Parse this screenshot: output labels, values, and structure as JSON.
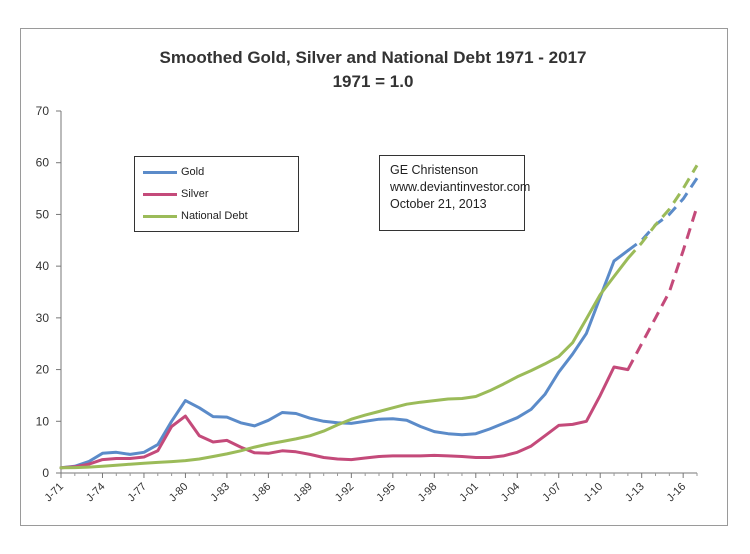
{
  "chart_data": {
    "type": "line",
    "title": "Smoothed Gold, Silver and National Debt 1971 - 2017",
    "subtitle": "1971 = 1.0",
    "xlabel": "",
    "ylabel": "",
    "ylim": [
      0,
      70
    ],
    "yticks": [
      0,
      10,
      20,
      30,
      40,
      50,
      60,
      70
    ],
    "xticks": [
      "J-71",
      "J-74",
      "J-77",
      "J-80",
      "J-83",
      "J-86",
      "J-89",
      "J-92",
      "J-95",
      "J-98",
      "J-01",
      "J-04",
      "J-07",
      "J-10",
      "J-13",
      "J-16"
    ],
    "x_start_year": 1971,
    "x_end_year": 2017,
    "grid": false,
    "legend_position": "top-left",
    "series": [
      {
        "name": "Gold",
        "color": "#5b8bc9",
        "x": [
          1971,
          1972,
          1973,
          1974,
          1975,
          1976,
          1977,
          1978,
          1979,
          1980,
          1981,
          1982,
          1983,
          1984,
          1985,
          1986,
          1987,
          1988,
          1989,
          1990,
          1991,
          1992,
          1993,
          1994,
          1995,
          1996,
          1997,
          1998,
          1999,
          2000,
          2001,
          2002,
          2003,
          2004,
          2005,
          2006,
          2007,
          2008,
          2009,
          2010,
          2011,
          2012
        ],
        "values": [
          1.0,
          1.3,
          2.2,
          3.8,
          4.0,
          3.6,
          4.0,
          5.5,
          10.0,
          14.0,
          12.6,
          10.9,
          10.8,
          9.7,
          9.1,
          10.2,
          11.7,
          11.5,
          10.6,
          10.0,
          9.7,
          9.6,
          10.0,
          10.4,
          10.5,
          10.2,
          9.0,
          8.0,
          7.6,
          7.4,
          7.6,
          8.5,
          9.6,
          10.7,
          12.3,
          15.2,
          19.5,
          23.0,
          27.0,
          34.0,
          41.0,
          43.0
        ]
      },
      {
        "name": "Gold (projected)",
        "color": "#5b8bc9",
        "dashed": true,
        "x": [
          2012,
          2013,
          2014,
          2015,
          2016,
          2017
        ],
        "values": [
          43.0,
          45.0,
          48.0,
          50.0,
          53.0,
          57.0
        ]
      },
      {
        "name": "Silver",
        "color": "#c44a7a",
        "x": [
          1971,
          1972,
          1973,
          1974,
          1975,
          1976,
          1977,
          1978,
          1979,
          1980,
          1981,
          1982,
          1983,
          1984,
          1985,
          1986,
          1987,
          1988,
          1989,
          1990,
          1991,
          1992,
          1993,
          1994,
          1995,
          1996,
          1997,
          1998,
          1999,
          2000,
          2001,
          2002,
          2003,
          2004,
          2005,
          2006,
          2007,
          2008,
          2009,
          2010,
          2011,
          2012
        ],
        "values": [
          1.0,
          1.2,
          1.7,
          2.6,
          2.8,
          2.8,
          3.1,
          4.3,
          9.0,
          11.0,
          7.2,
          6.0,
          6.3,
          5.0,
          3.9,
          3.8,
          4.3,
          4.1,
          3.6,
          3.0,
          2.7,
          2.6,
          2.9,
          3.2,
          3.3,
          3.3,
          3.3,
          3.4,
          3.3,
          3.2,
          3.0,
          3.0,
          3.3,
          4.0,
          5.2,
          7.2,
          9.2,
          9.4,
          10.0,
          15.0,
          20.5,
          20.0
        ]
      },
      {
        "name": "Silver (projected)",
        "color": "#c44a7a",
        "dashed": true,
        "x": [
          2012,
          2013,
          2014,
          2015,
          2016,
          2017
        ],
        "values": [
          20.0,
          25.0,
          30.0,
          35.0,
          43.0,
          51.5
        ]
      },
      {
        "name": "National Debt",
        "color": "#9bbb59",
        "x": [
          1971,
          1972,
          1973,
          1974,
          1975,
          1976,
          1977,
          1978,
          1979,
          1980,
          1981,
          1982,
          1983,
          1984,
          1985,
          1986,
          1987,
          1988,
          1989,
          1990,
          1991,
          1992,
          1993,
          1994,
          1995,
          1996,
          1997,
          1998,
          1999,
          2000,
          2001,
          2002,
          2003,
          2004,
          2005,
          2006,
          2007,
          2008,
          2009,
          2010,
          2011,
          2012
        ],
        "values": [
          1.0,
          1.05,
          1.15,
          1.3,
          1.5,
          1.7,
          1.9,
          2.05,
          2.2,
          2.4,
          2.7,
          3.2,
          3.7,
          4.3,
          5.0,
          5.6,
          6.1,
          6.6,
          7.2,
          8.1,
          9.3,
          10.4,
          11.2,
          11.9,
          12.6,
          13.3,
          13.7,
          14.0,
          14.3,
          14.4,
          14.8,
          15.9,
          17.2,
          18.6,
          19.8,
          21.1,
          22.5,
          25.2,
          29.8,
          34.5,
          38.0,
          41.5
        ]
      },
      {
        "name": "National Debt (projected)",
        "color": "#9bbb59",
        "dashed": true,
        "x": [
          2012,
          2013,
          2014,
          2015,
          2016,
          2017
        ],
        "values": [
          41.5,
          44.5,
          48.0,
          51.0,
          55.0,
          59.5
        ]
      }
    ],
    "legend": [
      "Gold",
      "Silver",
      "National Debt"
    ],
    "annotation": {
      "author": "GE Christenson",
      "site": "www.deviantinvestor.com",
      "date": "October 21, 2013"
    }
  }
}
